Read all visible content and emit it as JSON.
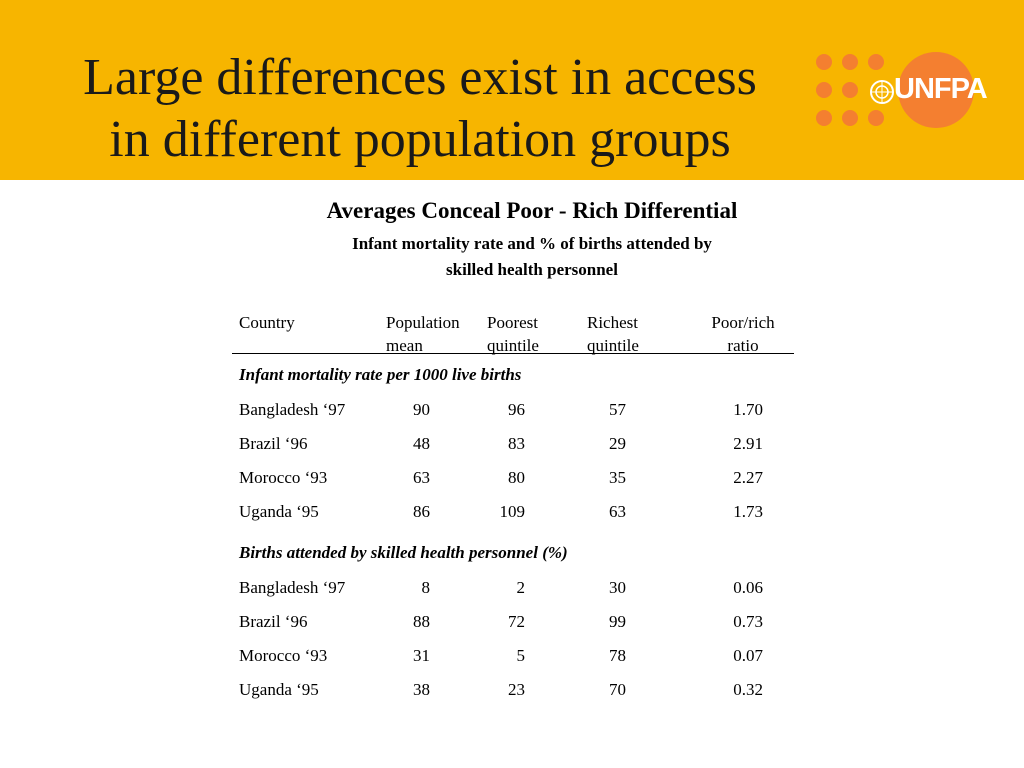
{
  "slide": {
    "title_line1": "Large differences exist in access",
    "title_line2": "in different population groups",
    "logo_text": "UNFPA"
  },
  "colors": {
    "header_bg": "#f7b500",
    "logo_orange": "#f47f30"
  },
  "table": {
    "heading": "Averages Conceal Poor - Rich Differential",
    "subheading_line1": "Infant mortality rate and % of births attended by",
    "subheading_line2": "skilled health personnel",
    "columns": [
      {
        "line1": "Country",
        "line2": ""
      },
      {
        "line1": "Population",
        "line2": "mean"
      },
      {
        "line1": "Poorest",
        "line2": "quintile"
      },
      {
        "line1": "Richest",
        "line2": "quintile"
      },
      {
        "line1": "Poor/rich",
        "line2": "ratio"
      }
    ],
    "sections": [
      {
        "title": "Infant mortality rate per 1000 live births",
        "rows": [
          {
            "country": "Bangladesh ‘97",
            "population_mean": "90",
            "poorest": "96",
            "richest": "57",
            "ratio": "1.70"
          },
          {
            "country": "Brazil ‘96",
            "population_mean": "48",
            "poorest": "83",
            "richest": "29",
            "ratio": "2.91"
          },
          {
            "country": "Morocco ‘93",
            "population_mean": "63",
            "poorest": "80",
            "richest": "35",
            "ratio": "2.27"
          },
          {
            "country": "Uganda ‘95",
            "population_mean": "86",
            "poorest": "109",
            "richest": "63",
            "ratio": "1.73"
          }
        ]
      },
      {
        "title": "Births attended by skilled health personnel (%)",
        "rows": [
          {
            "country": "Bangladesh ‘97",
            "population_mean": "8",
            "poorest": "2",
            "richest": "30",
            "ratio": "0.06"
          },
          {
            "country": "Brazil ‘96",
            "population_mean": "88",
            "poorest": "72",
            "richest": "99",
            "ratio": "0.73"
          },
          {
            "country": "Morocco ‘93",
            "population_mean": "31",
            "poorest": "5",
            "richest": "78",
            "ratio": "0.07"
          },
          {
            "country": "Uganda ‘95",
            "population_mean": "38",
            "poorest": "23",
            "richest": "70",
            "ratio": "0.32"
          }
        ]
      }
    ]
  }
}
